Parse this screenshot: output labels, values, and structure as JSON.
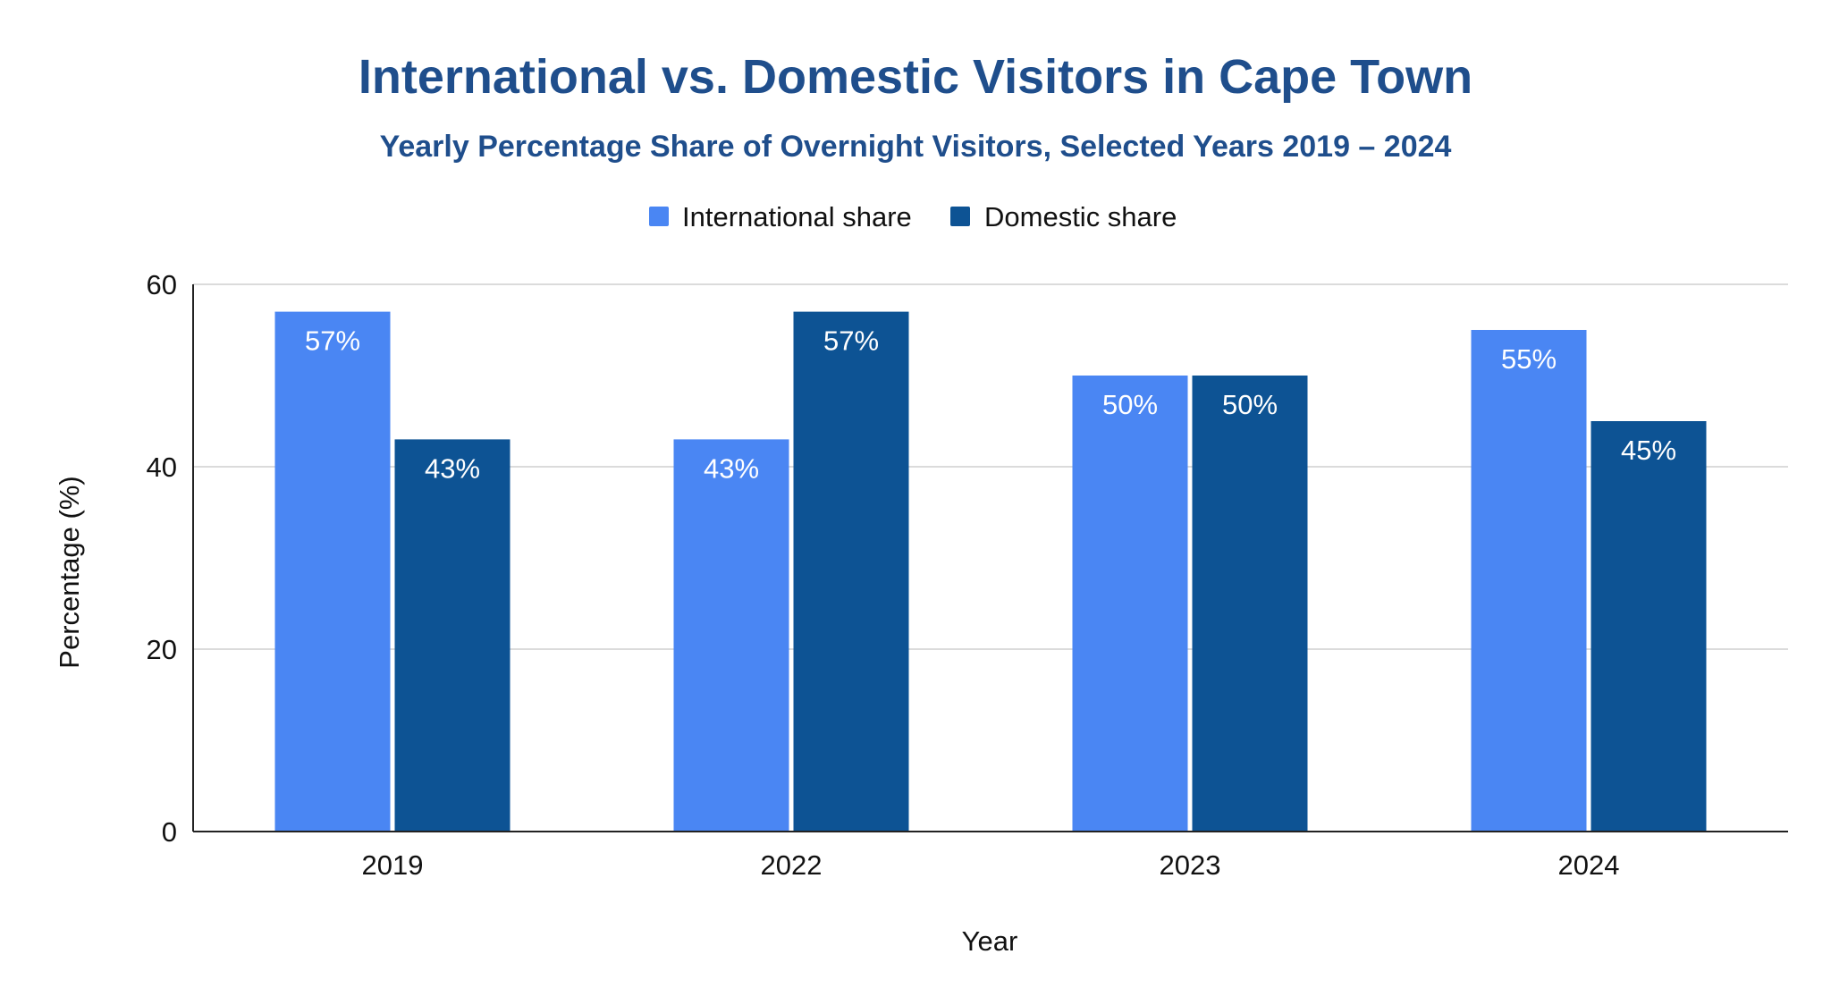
{
  "chart_data": {
    "type": "bar",
    "title": "International vs. Domestic Visitors in Cape Town",
    "subtitle": "Yearly Percentage Share of Overnight Visitors, Selected Years 2019 – 2024",
    "xlabel": "Year",
    "ylabel": "Percentage (%)",
    "categories": [
      "2019",
      "2022",
      "2023",
      "2024"
    ],
    "series": [
      {
        "name": "International share",
        "values": [
          57,
          43,
          50,
          55
        ],
        "labels": [
          "57%",
          "43%",
          "50%",
          "55%"
        ],
        "color": "#4a86f3"
      },
      {
        "name": "Domestic share",
        "values": [
          43,
          57,
          50,
          45
        ],
        "labels": [
          "43%",
          "57%",
          "50%",
          "45%"
        ],
        "color": "#0d5394"
      }
    ],
    "ylim": [
      0,
      60
    ],
    "yticks": [
      "0",
      "20",
      "40",
      "60"
    ],
    "grid": true,
    "legend_position": "top-center"
  },
  "colors": {
    "title": "#1f4e8c",
    "subtitle": "#1f4e8c",
    "gridline": "#cfcfcf",
    "axis": "#222222",
    "text": "#111111",
    "data_label": "#ffffff"
  }
}
